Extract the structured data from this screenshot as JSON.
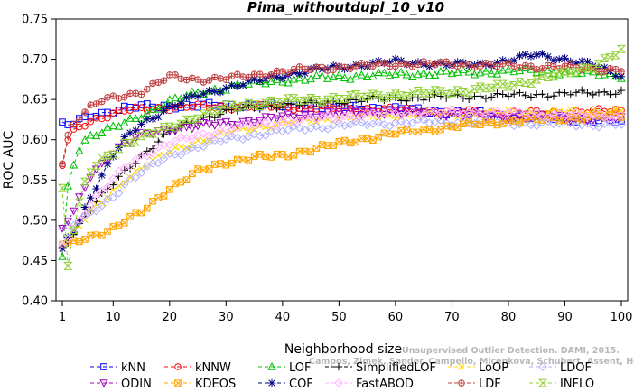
{
  "chart_data": {
    "type": "line",
    "title": "Pima_withoutdupl_10_v10",
    "xlabel": "Neighborhood size",
    "ylabel": "ROC AUC",
    "xlim": [
      1,
      100
    ],
    "ylim": [
      0.4,
      0.75
    ],
    "xticks": [
      "1",
      "10",
      "20",
      "30",
      "40",
      "50",
      "60",
      "70",
      "80",
      "90",
      "100"
    ],
    "yticks": [
      "0.40",
      "0.45",
      "0.50",
      "0.55",
      "0.60",
      "0.65",
      "0.70",
      "0.75"
    ],
    "grid": false,
    "legend_position": "bottom",
    "k": [
      1,
      2,
      3,
      4,
      5,
      6,
      8,
      10,
      12,
      15,
      20,
      25,
      30,
      35,
      40,
      45,
      50,
      55,
      60,
      65,
      70,
      75,
      80,
      85,
      90,
      95,
      100
    ],
    "series": [
      {
        "name": "kNN",
        "color": "#0000ff",
        "marker": "square",
        "values": [
          0.622,
          0.618,
          0.62,
          0.624,
          0.626,
          0.63,
          0.633,
          0.636,
          0.639,
          0.641,
          0.642,
          0.642,
          0.643,
          0.643,
          0.642,
          0.642,
          0.641,
          0.64,
          0.638,
          0.636,
          0.634,
          0.632,
          0.63,
          0.628,
          0.626,
          0.624,
          0.622
        ]
      },
      {
        "name": "kNNW",
        "color": "#ff0000",
        "marker": "circle",
        "values": [
          0.568,
          0.6,
          0.61,
          0.615,
          0.62,
          0.624,
          0.628,
          0.632,
          0.636,
          0.638,
          0.64,
          0.641,
          0.641,
          0.641,
          0.641,
          0.64,
          0.639,
          0.638,
          0.637,
          0.636,
          0.635,
          0.634,
          0.633,
          0.633,
          0.634,
          0.635,
          0.636
        ]
      },
      {
        "name": "LOF",
        "color": "#00c000",
        "marker": "triangle-up",
        "values": [
          0.455,
          0.54,
          0.57,
          0.59,
          0.6,
          0.605,
          0.61,
          0.615,
          0.62,
          0.63,
          0.648,
          0.658,
          0.665,
          0.67,
          0.674,
          0.676,
          0.678,
          0.68,
          0.681,
          0.682,
          0.683,
          0.684,
          0.685,
          0.686,
          0.684,
          0.682,
          0.68
        ]
      },
      {
        "name": "SimplifiedLOF",
        "color": "#000000",
        "marker": "plus",
        "values": [
          0.465,
          0.475,
          0.485,
          0.495,
          0.505,
          0.515,
          0.53,
          0.545,
          0.56,
          0.58,
          0.61,
          0.625,
          0.635,
          0.64,
          0.643,
          0.645,
          0.648,
          0.65,
          0.651,
          0.652,
          0.653,
          0.654,
          0.655,
          0.656,
          0.657,
          0.658,
          0.66
        ]
      },
      {
        "name": "LoOP",
        "color": "#ffd700",
        "marker": "x",
        "values": [
          0.47,
          0.478,
          0.486,
          0.494,
          0.502,
          0.51,
          0.522,
          0.535,
          0.55,
          0.565,
          0.585,
          0.598,
          0.608,
          0.615,
          0.62,
          0.624,
          0.627,
          0.629,
          0.63,
          0.631,
          0.632,
          0.633,
          0.634,
          0.634,
          0.635,
          0.635,
          0.636
        ]
      },
      {
        "name": "LDOF",
        "color": "#b0b0ff",
        "marker": "diamond",
        "values": [
          0.49,
          0.492,
          0.495,
          0.498,
          0.502,
          0.508,
          0.518,
          0.53,
          0.545,
          0.56,
          0.58,
          0.592,
          0.6,
          0.606,
          0.611,
          0.615,
          0.618,
          0.62,
          0.621,
          0.622,
          0.622,
          0.622,
          0.621,
          0.62,
          0.62,
          0.619,
          0.619
        ]
      },
      {
        "name": "ODIN",
        "color": "#a000c0",
        "marker": "triangle-down",
        "values": [
          0.49,
          0.5,
          0.51,
          0.525,
          0.54,
          0.555,
          0.57,
          0.585,
          0.595,
          0.605,
          0.613,
          0.617,
          0.62,
          0.624,
          0.628,
          0.631,
          0.633,
          0.634,
          0.634,
          0.633,
          0.632,
          0.63,
          0.629,
          0.628,
          0.627,
          0.626,
          0.625
        ]
      },
      {
        "name": "KDEOS",
        "color": "#ffa500",
        "marker": "square-x",
        "values": [
          0.47,
          0.47,
          0.472,
          0.475,
          0.478,
          0.48,
          0.485,
          0.49,
          0.498,
          0.51,
          0.54,
          0.56,
          0.572,
          0.578,
          0.58,
          0.588,
          0.595,
          0.602,
          0.608,
          0.612,
          0.616,
          0.62,
          0.623,
          0.625,
          0.627,
          0.628,
          0.63
        ]
      },
      {
        "name": "COF",
        "color": "#000080",
        "marker": "asterisk",
        "values": [
          0.465,
          0.478,
          0.488,
          0.5,
          0.515,
          0.53,
          0.555,
          0.58,
          0.6,
          0.62,
          0.64,
          0.655,
          0.665,
          0.672,
          0.68,
          0.686,
          0.69,
          0.694,
          0.697,
          0.695,
          0.693,
          0.694,
          0.698,
          0.706,
          0.7,
          0.692,
          0.68
        ]
      },
      {
        "name": "FastABOD",
        "color": "#ffb0ff",
        "marker": "diamond",
        "values": [
          0.47,
          0.48,
          0.49,
          0.5,
          0.51,
          0.52,
          0.535,
          0.55,
          0.565,
          0.58,
          0.595,
          0.605,
          0.612,
          0.618,
          0.622,
          0.626,
          0.629,
          0.631,
          0.633,
          0.634,
          0.634,
          0.634,
          0.633,
          0.632,
          0.631,
          0.63,
          0.629
        ]
      },
      {
        "name": "LDF",
        "color": "#c04040",
        "marker": "circle-plus",
        "values": [
          0.57,
          0.605,
          0.62,
          0.628,
          0.634,
          0.64,
          0.648,
          0.652,
          0.655,
          0.66,
          0.678,
          0.675,
          0.676,
          0.68,
          0.685,
          0.688,
          0.69,
          0.692,
          0.694,
          0.694,
          0.694,
          0.693,
          0.692,
          0.691,
          0.69,
          0.688,
          0.687
        ]
      },
      {
        "name": "INFLO",
        "color": "#90d030",
        "marker": "hourglass",
        "values": [
          0.54,
          0.445,
          0.49,
          0.52,
          0.545,
          0.56,
          0.575,
          0.585,
          0.595,
          0.603,
          0.615,
          0.63,
          0.64,
          0.645,
          0.648,
          0.65,
          0.652,
          0.654,
          0.656,
          0.658,
          0.66,
          0.663,
          0.668,
          0.675,
          0.682,
          0.692,
          0.71
        ]
      }
    ]
  },
  "watermark": {
    "line1": "Unsupervised Outlier Detection. DAMI, 2015.",
    "line2": "Campos, Zimek, Sander, Campello, Micenkova, Schubert, Assent, Houle"
  }
}
